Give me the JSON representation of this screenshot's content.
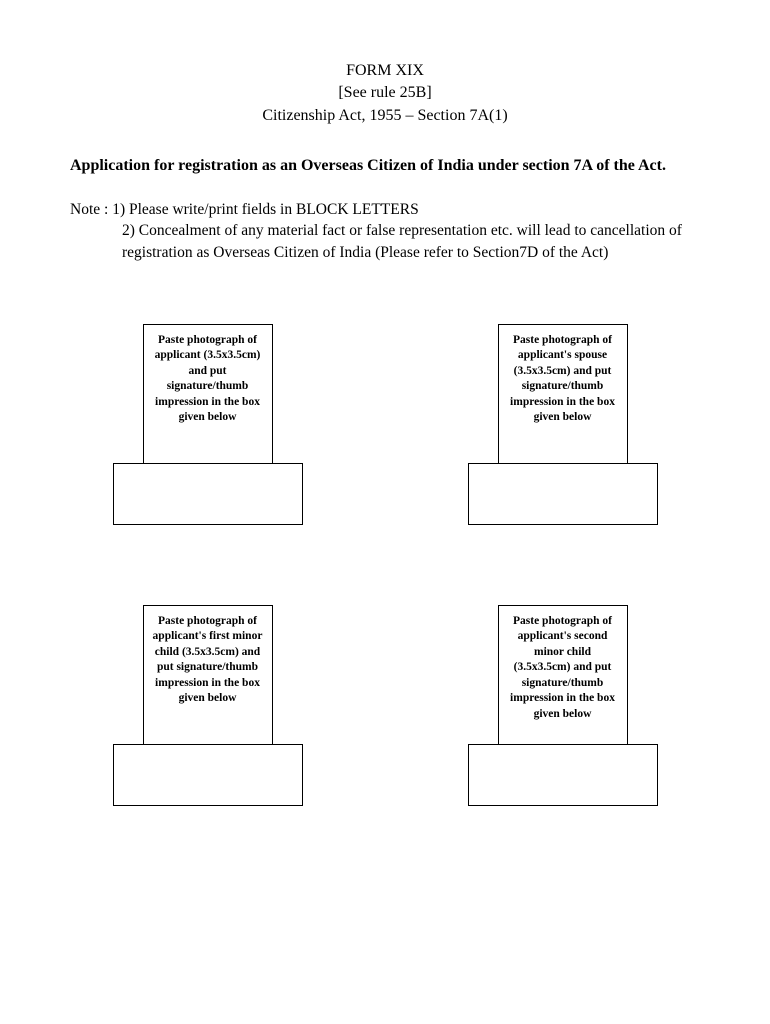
{
  "header": {
    "line1": "FORM XIX",
    "line2": "[See rule 25B]",
    "line3": "Citizenship Act, 1955 – Section 7A(1)"
  },
  "title": "Application for registration as an Overseas Citizen of India under section 7A of the Act.",
  "note": {
    "label": "Note : ",
    "item1": "1) Please write/print fields in BLOCK LETTERS",
    "item2": "2) Concealment of any material fact or false representation etc. will lead to cancellation of registration as Overseas Citizen of India (Please refer to Section7D of the Act)"
  },
  "photos": [
    {
      "text": "Paste photograph of applicant (3.5x3.5cm) and put signature/thumb impression in the box given below"
    },
    {
      "text": "Paste photograph of applicant's spouse (3.5x3.5cm) and put signature/thumb impression in the box given below"
    },
    {
      "text": "Paste photograph of applicant's first minor child (3.5x3.5cm) and put signature/thumb impression in the box given below"
    },
    {
      "text": "Paste photograph of applicant's second minor child (3.5x3.5cm) and put signature/thumb impression in the box given  below"
    }
  ]
}
